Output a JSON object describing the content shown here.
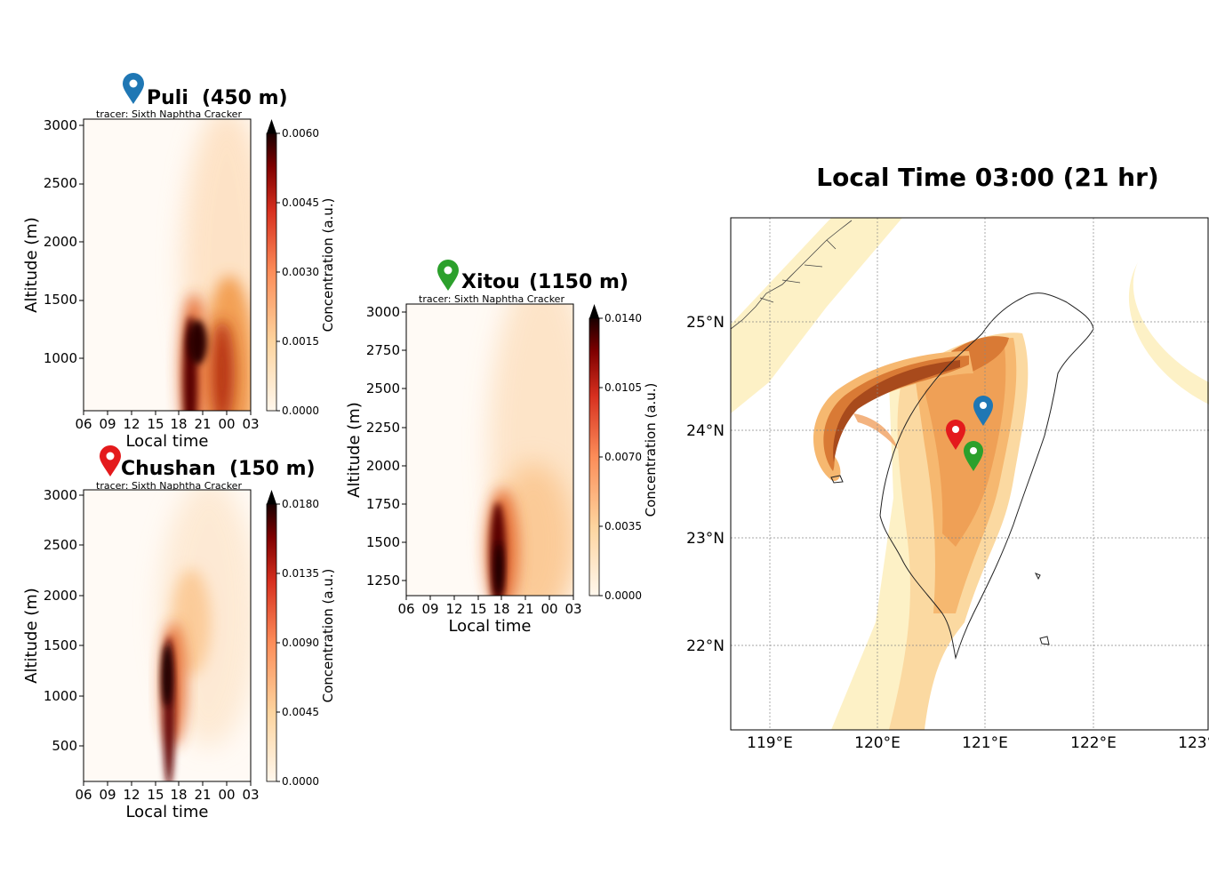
{
  "chart_data": [
    {
      "type": "heatmap",
      "site": "Puli",
      "elevation": "(450 m)",
      "subtitle": "tracer: Sixth Naphtha Cracker",
      "marker_color": "#1f77b4",
      "xlabel": "Local time",
      "ylabel": "Altitude (m)",
      "x_ticks": [
        "06",
        "09",
        "12",
        "15",
        "18",
        "21",
        "00",
        "03"
      ],
      "y_ticks": [
        1000,
        1500,
        2000,
        2500,
        3000
      ],
      "ylim": [
        500,
        3050
      ],
      "colorbar_label": "Concentration (a.u.)",
      "colorbar_ticks": [
        "0.0000",
        "0.0015",
        "0.0030",
        "0.0045",
        "0.0060"
      ],
      "plumes": [
        {
          "x": 16.6,
          "y0": 500,
          "y1": 1400,
          "intensity": 1.0,
          "width": 0.9
        },
        {
          "x": 18.4,
          "y0": 500,
          "y1": 1250,
          "intensity": 0.75,
          "width": 1.3
        },
        {
          "x": 19.6,
          "y0": 1000,
          "y1": 3000,
          "intensity": 0.35,
          "width": 1.2
        }
      ]
    },
    {
      "type": "heatmap",
      "site": "Chushan",
      "elevation": "(150 m)",
      "subtitle": "tracer: Sixth Naphtha Cracker",
      "marker_color": "#e41a1c",
      "xlabel": "Local time",
      "ylabel": "Altitude (m)",
      "x_ticks": [
        "06",
        "09",
        "12",
        "15",
        "18",
        "21",
        "00",
        "03"
      ],
      "y_ticks": [
        500,
        1000,
        1500,
        2000,
        2500,
        3000
      ],
      "ylim": [
        150,
        3050
      ],
      "colorbar_label": "Concentration (a.u.)",
      "colorbar_ticks": [
        "0.0000",
        "0.0045",
        "0.0090",
        "0.0135",
        "0.0180"
      ],
      "plumes": [
        {
          "x": 11.0,
          "y0": 150,
          "y1": 1500,
          "intensity": 1.0,
          "width": 0.8
        },
        {
          "x": 13.0,
          "y0": 900,
          "y1": 2500,
          "intensity": 0.3,
          "width": 1.6
        }
      ]
    },
    {
      "type": "heatmap",
      "site": "Xitou",
      "elevation": "(1150 m)",
      "subtitle": "tracer: Sixth Naphtha Cracker",
      "marker_color": "#2ca02c",
      "xlabel": "Local time",
      "ylabel": "Altitude (m)",
      "x_ticks": [
        "06",
        "09",
        "12",
        "15",
        "18",
        "21",
        "00",
        "03"
      ],
      "y_ticks": [
        1250,
        1500,
        1750,
        2000,
        2250,
        2500,
        2750,
        3000
      ],
      "ylim": [
        1150,
        3050
      ],
      "colorbar_label": "Concentration (a.u.)",
      "colorbar_ticks": [
        "0.0000",
        "0.0035",
        "0.0070",
        "0.0105",
        "0.0140"
      ],
      "plumes": [
        {
          "x": 11.5,
          "y0": 1150,
          "y1": 1800,
          "intensity": 1.0,
          "width": 0.9
        },
        {
          "x": 14.5,
          "y0": 1150,
          "y1": 3000,
          "intensity": 0.35,
          "width": 2.0
        }
      ]
    }
  ],
  "map": {
    "title": "Local Time 03:00 (21 hr)",
    "lat_ticks": [
      "25°N",
      "24°N",
      "23°N",
      "22°N"
    ],
    "lon_ticks": [
      "119°E",
      "120°E",
      "121°E",
      "122°E",
      "123°E"
    ],
    "markers": [
      {
        "name": "Puli",
        "color": "#1f77b4",
        "lon": 120.97,
        "lat": 24.0
      },
      {
        "name": "Chushan",
        "color": "#e41a1c",
        "lon": 120.7,
        "lat": 23.78
      },
      {
        "name": "Xitou",
        "color": "#2ca02c",
        "lon": 120.9,
        "lat": 23.6
      }
    ]
  }
}
